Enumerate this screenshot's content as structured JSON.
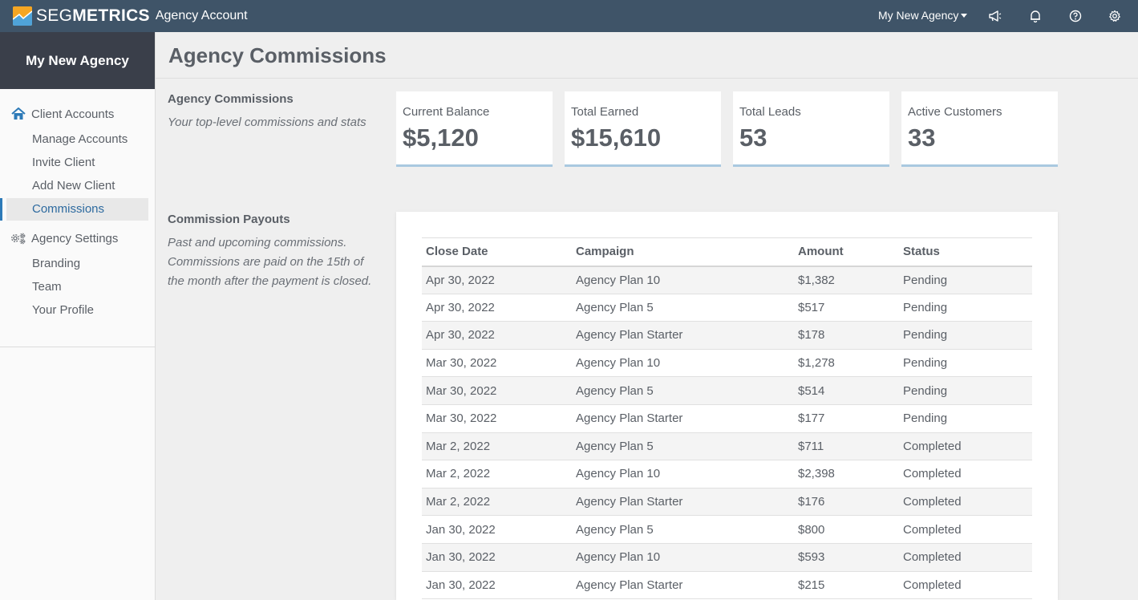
{
  "topbar": {
    "brand_seg": "SEG",
    "brand_metrics": "METRICS",
    "account_label": "Agency Account",
    "agency_selector": "My New Agency",
    "icons": [
      "megaphone-icon",
      "bell-icon",
      "help-icon",
      "gear-icon"
    ]
  },
  "sidebar": {
    "agency_name": "My New Agency",
    "client_accounts": {
      "label": "Client Accounts",
      "icon": "home-icon",
      "items": [
        {
          "label": "Manage Accounts"
        },
        {
          "label": "Invite Client"
        },
        {
          "label": "Add New Client"
        },
        {
          "label": "Commissions",
          "active": true
        }
      ]
    },
    "agency_settings": {
      "label": "Agency Settings",
      "icon": "settings-cogs-icon",
      "items": [
        {
          "label": "Branding"
        },
        {
          "label": "Team"
        },
        {
          "label": "Your Profile"
        }
      ]
    }
  },
  "main": {
    "title": "Agency Commissions",
    "stats_section": {
      "heading": "Agency Commissions",
      "description": "Your top-level commissions and stats"
    },
    "stats": [
      {
        "label": "Current Balance",
        "value": "$5,120"
      },
      {
        "label": "Total Earned",
        "value": "$15,610"
      },
      {
        "label": "Total Leads",
        "value": "53"
      },
      {
        "label": "Active Customers",
        "value": "33"
      }
    ],
    "payouts_section": {
      "heading": "Commission Payouts",
      "description": "Past and upcoming commissions. Commissions are paid on the 15th of the month after the payment is closed."
    },
    "table": {
      "columns": [
        "Close Date",
        "Campaign",
        "Amount",
        "Status"
      ],
      "rows": [
        [
          "Apr 30, 2022",
          "Agency Plan 10",
          "$1,382",
          "Pending"
        ],
        [
          "Apr 30, 2022",
          "Agency Plan 5",
          "$517",
          "Pending"
        ],
        [
          "Apr 30, 2022",
          "Agency Plan Starter",
          "$178",
          "Pending"
        ],
        [
          "Mar 30, 2022",
          "Agency Plan 10",
          "$1,278",
          "Pending"
        ],
        [
          "Mar 30, 2022",
          "Agency Plan 5",
          "$514",
          "Pending"
        ],
        [
          "Mar 30, 2022",
          "Agency Plan Starter",
          "$177",
          "Pending"
        ],
        [
          "Mar 2, 2022",
          "Agency Plan 5",
          "$711",
          "Completed"
        ],
        [
          "Mar 2, 2022",
          "Agency Plan 10",
          "$2,398",
          "Completed"
        ],
        [
          "Mar 2, 2022",
          "Agency Plan Starter",
          "$176",
          "Completed"
        ],
        [
          "Jan 30, 2022",
          "Agency Plan 5",
          "$800",
          "Completed"
        ],
        [
          "Jan 30, 2022",
          "Agency Plan 10",
          "$593",
          "Completed"
        ],
        [
          "Jan 30, 2022",
          "Agency Plan Starter",
          "$215",
          "Completed"
        ]
      ]
    }
  },
  "colors": {
    "topbar": "#3f5468",
    "sidebar_header": "#3a3f4a",
    "accent": "#2d7ab8",
    "card_underline": "#a9c9e0"
  }
}
